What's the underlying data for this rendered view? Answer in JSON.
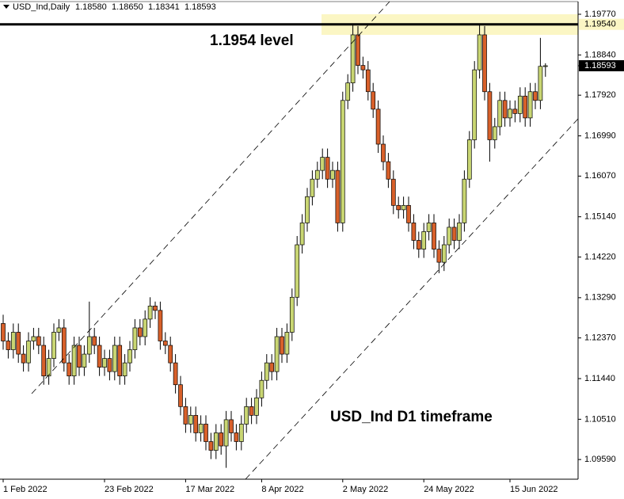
{
  "chart_data": {
    "type": "candlestick",
    "legend_text": "USD_Ind,Daily",
    "last_value_labels": [
      "1.18580",
      "1.18650",
      "1.18341",
      "1.18593"
    ],
    "annotations": [
      "1.1954 level",
      "USD_Ind D1 timeframe"
    ],
    "level": {
      "value": 1.1954,
      "label": "1.19540"
    },
    "current_price": {
      "value": 1.18593,
      "label": "1.18593"
    },
    "colors": {
      "up": "#c9d673",
      "down": "#d8602a",
      "level_zone": "#fbf6c4"
    },
    "ylim": [
      1.0914,
      1.2006
    ],
    "yticks": [
      {
        "value": 1.1977,
        "label": "1.19770"
      },
      {
        "value": 1.1884,
        "label": "1.18840"
      },
      {
        "value": 1.1792,
        "label": "1.17920"
      },
      {
        "value": 1.1699,
        "label": "1.16990"
      },
      {
        "value": 1.1607,
        "label": "1.16070"
      },
      {
        "value": 1.1514,
        "label": "1.15140"
      },
      {
        "value": 1.1422,
        "label": "1.14220"
      },
      {
        "value": 1.1329,
        "label": "1.13290"
      },
      {
        "value": 1.1237,
        "label": "1.12370"
      },
      {
        "value": 1.1144,
        "label": "1.11440"
      },
      {
        "value": 1.1051,
        "label": "1.10510"
      },
      {
        "value": 1.0959,
        "label": "1.09590"
      }
    ],
    "categories": [
      "1 Feb 2022",
      null,
      null,
      null,
      null,
      null,
      null,
      null,
      null,
      null,
      null,
      null,
      null,
      null,
      null,
      null,
      null,
      null,
      null,
      null,
      "23 Feb 2022",
      null,
      null,
      null,
      null,
      null,
      null,
      null,
      null,
      null,
      null,
      null,
      null,
      null,
      null,
      null,
      "17 Mar 2022",
      null,
      null,
      null,
      null,
      null,
      null,
      null,
      null,
      null,
      null,
      null,
      null,
      null,
      null,
      "8 Apr 2022",
      null,
      null,
      null,
      null,
      null,
      null,
      null,
      null,
      null,
      null,
      null,
      null,
      null,
      null,
      null,
      "2 May 2022",
      null,
      null,
      null,
      null,
      null,
      null,
      null,
      null,
      null,
      null,
      null,
      null,
      null,
      null,
      null,
      "24 May 2022",
      null,
      null,
      null,
      null,
      null,
      null,
      null,
      null,
      null,
      null,
      null,
      null,
      null,
      null,
      null,
      null,
      "15 Jun 2022",
      null,
      null,
      null,
      null,
      null,
      null,
      null
    ],
    "open": [
      1.127,
      1.123,
      1.121,
      1.125,
      1.12,
      1.118,
      1.123,
      1.124,
      1.122,
      1.115,
      1.119,
      1.125,
      1.126,
      1.118,
      1.115,
      1.122,
      1.117,
      1.12,
      1.124,
      1.122,
      1.117,
      1.119,
      1.116,
      1.122,
      1.115,
      1.118,
      1.121,
      1.126,
      1.124,
      1.128,
      1.131,
      1.13,
      1.123,
      1.122,
      1.118,
      1.113,
      1.108,
      1.104,
      1.106,
      1.102,
      1.104,
      1.1,
      1.098,
      1.102,
      1.099,
      1.105,
      1.102,
      1.1,
      1.104,
      1.108,
      1.106,
      1.11,
      1.114,
      1.118,
      1.116,
      1.124,
      1.12,
      1.125,
      1.133,
      1.145,
      1.15,
      1.156,
      1.16,
      1.162,
      1.165,
      1.16,
      1.162,
      1.15,
      1.178,
      1.182,
      1.193,
      1.186,
      1.185,
      1.18,
      1.176,
      1.168,
      1.164,
      1.16,
      1.154,
      1.153,
      1.154,
      1.15,
      1.146,
      1.144,
      1.148,
      1.15,
      1.144,
      1.141,
      1.145,
      1.149,
      1.146,
      1.15,
      1.16,
      1.169,
      1.185,
      1.193,
      1.18,
      1.169,
      1.172,
      1.178,
      1.174,
      1.176,
      1.175,
      1.179,
      1.174,
      1.18,
      1.178,
      1.1858
    ],
    "high": [
      1.129,
      1.125,
      1.127,
      1.127,
      1.122,
      1.125,
      1.126,
      1.126,
      1.124,
      1.121,
      1.127,
      1.128,
      1.128,
      1.12,
      1.124,
      1.124,
      1.122,
      1.132,
      1.126,
      1.124,
      1.121,
      1.121,
      1.124,
      1.124,
      1.12,
      1.123,
      1.128,
      1.128,
      1.13,
      1.133,
      1.132,
      1.132,
      1.125,
      1.124,
      1.12,
      1.115,
      1.11,
      1.108,
      1.108,
      1.106,
      1.106,
      1.102,
      1.104,
      1.104,
      1.107,
      1.107,
      1.104,
      1.106,
      1.11,
      1.11,
      1.112,
      1.116,
      1.12,
      1.12,
      1.126,
      1.126,
      1.127,
      1.135,
      1.147,
      1.152,
      1.158,
      1.162,
      1.164,
      1.167,
      1.167,
      1.164,
      1.164,
      1.18,
      1.184,
      1.1954,
      1.195,
      1.188,
      1.187,
      1.182,
      1.178,
      1.17,
      1.166,
      1.162,
      1.156,
      1.156,
      1.156,
      1.152,
      1.148,
      1.15,
      1.152,
      1.152,
      1.146,
      1.147,
      1.151,
      1.151,
      1.152,
      1.162,
      1.171,
      1.187,
      1.1956,
      1.195,
      1.182,
      1.174,
      1.18,
      1.18,
      1.178,
      1.178,
      1.181,
      1.181,
      1.182,
      1.182,
      1.1923,
      1.1865
    ],
    "low": [
      1.121,
      1.119,
      1.119,
      1.118,
      1.116,
      1.116,
      1.121,
      1.12,
      1.113,
      1.113,
      1.117,
      1.123,
      1.116,
      1.113,
      1.113,
      1.115,
      1.115,
      1.118,
      1.12,
      1.115,
      1.115,
      1.114,
      1.114,
      1.113,
      1.113,
      1.116,
      1.119,
      1.122,
      1.122,
      1.126,
      1.128,
      1.121,
      1.12,
      1.116,
      1.111,
      1.106,
      1.102,
      1.102,
      1.1,
      1.1,
      1.098,
      1.096,
      1.096,
      1.097,
      1.094,
      1.1,
      1.098,
      1.098,
      1.102,
      1.104,
      1.104,
      1.108,
      1.112,
      1.114,
      1.114,
      1.118,
      1.118,
      1.123,
      1.131,
      1.143,
      1.148,
      1.154,
      1.158,
      1.16,
      1.158,
      1.158,
      1.148,
      1.148,
      1.176,
      1.18,
      1.184,
      1.183,
      1.178,
      1.174,
      1.166,
      1.162,
      1.158,
      1.152,
      1.151,
      1.151,
      1.148,
      1.144,
      1.142,
      1.142,
      1.146,
      1.142,
      1.1385,
      1.139,
      1.143,
      1.144,
      1.144,
      1.148,
      1.158,
      1.167,
      1.183,
      1.178,
      1.164,
      1.167,
      1.17,
      1.172,
      1.172,
      1.173,
      1.173,
      1.172,
      1.172,
      1.176,
      1.176,
      1.18341
    ],
    "close": [
      1.123,
      1.121,
      1.125,
      1.12,
      1.118,
      1.123,
      1.124,
      1.122,
      1.115,
      1.119,
      1.125,
      1.126,
      1.118,
      1.115,
      1.122,
      1.117,
      1.12,
      1.124,
      1.122,
      1.117,
      1.119,
      1.116,
      1.122,
      1.115,
      1.118,
      1.121,
      1.126,
      1.124,
      1.128,
      1.131,
      1.13,
      1.123,
      1.122,
      1.118,
      1.113,
      1.108,
      1.104,
      1.106,
      1.102,
      1.104,
      1.1,
      1.098,
      1.102,
      1.099,
      1.105,
      1.102,
      1.1,
      1.104,
      1.108,
      1.106,
      1.11,
      1.114,
      1.118,
      1.116,
      1.124,
      1.12,
      1.125,
      1.133,
      1.145,
      1.15,
      1.156,
      1.16,
      1.162,
      1.165,
      1.16,
      1.162,
      1.15,
      1.178,
      1.182,
      1.193,
      1.186,
      1.185,
      1.18,
      1.176,
      1.168,
      1.164,
      1.16,
      1.154,
      1.153,
      1.154,
      1.15,
      1.146,
      1.144,
      1.148,
      1.15,
      1.144,
      1.141,
      1.145,
      1.149,
      1.146,
      1.15,
      1.16,
      1.169,
      1.185,
      1.193,
      1.18,
      1.169,
      1.172,
      1.178,
      1.174,
      1.176,
      1.175,
      1.179,
      1.174,
      1.18,
      1.178,
      1.1858,
      1.18593
    ]
  }
}
